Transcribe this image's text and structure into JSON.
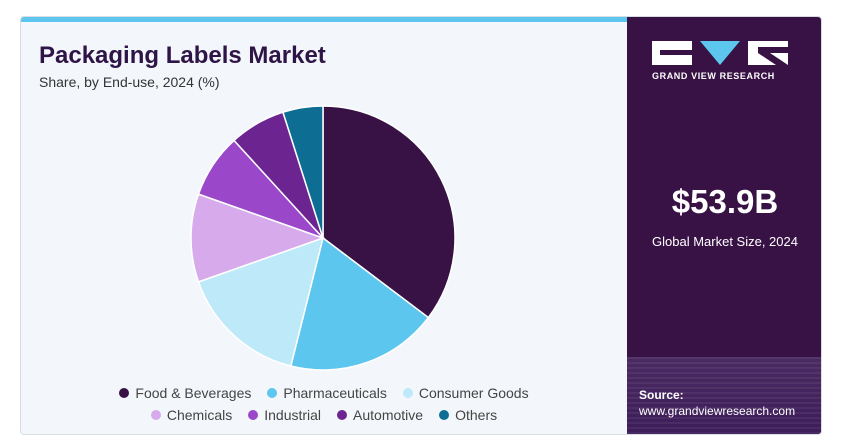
{
  "header": {
    "title": "Packaging Labels Market",
    "subtitle": "Share, by End-use, 2024 (%)"
  },
  "brand": {
    "name": "GRAND VIEW RESEARCH",
    "logo_icon": "gvr-logo-icon"
  },
  "summary": {
    "value": "$53.9B",
    "label": "Global Market Size, 2024"
  },
  "source": {
    "title": "Source:",
    "url": "www.grandviewresearch.com"
  },
  "colors": {
    "accent_bar": "#5cc6ef",
    "title": "#2f1547",
    "right_panel": "#381245"
  },
  "chart_data": {
    "type": "pie",
    "title": "Packaging Labels Market",
    "subtitle": "Share, by End-use, 2024 (%)",
    "start_angle_deg": 0,
    "direction": "clockwise",
    "legend_position": "bottom",
    "series": [
      {
        "name": "Food & Beverages",
        "value": 36,
        "color": "#381245"
      },
      {
        "name": "Pharmaceuticals",
        "value": 19,
        "color": "#5cc6ef"
      },
      {
        "name": "Consumer Goods",
        "value": 16,
        "color": "#bee9f8"
      },
      {
        "name": "Chemicals",
        "value": 11,
        "color": "#d7aaeb"
      },
      {
        "name": "Industrial",
        "value": 8,
        "color": "#9a48c9"
      },
      {
        "name": "Automotive",
        "value": 7,
        "color": "#6c2590"
      },
      {
        "name": "Others",
        "value": 5,
        "color": "#0e6d92"
      }
    ],
    "legend_rows": [
      [
        "Food & Beverages",
        "Pharmaceuticals",
        "Consumer Goods"
      ],
      [
        "Chemicals",
        "Industrial",
        "Automotive",
        "Others"
      ]
    ]
  }
}
